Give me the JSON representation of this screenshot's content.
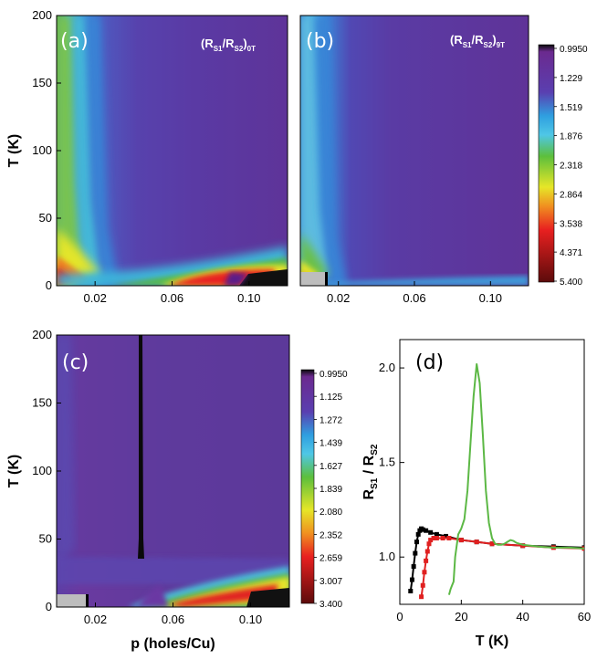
{
  "figure": {
    "panels": {
      "a": {
        "label": "(a)",
        "annotation": {
          "main1": "(R",
          "sub1": "S1",
          "main2": "/R",
          "sub2": "S2",
          "main3": ")",
          "sub3": "0T"
        }
      },
      "b": {
        "label": "(b)",
        "annotation": {
          "main1": "(R",
          "sub1": "S1",
          "main2": "/R",
          "sub2": "S2",
          "main3": ")",
          "sub3": "9T"
        }
      },
      "c": {
        "label": "(c)"
      },
      "d": {
        "label": "(d)"
      }
    }
  },
  "chart_data": [
    {
      "type": "heatmap",
      "panel": "a",
      "title": "(R_S1/R_S2)_0T",
      "xlabel": "",
      "ylabel": "T (K)",
      "xlim": [
        0.0,
        0.12
      ],
      "ylim": [
        0,
        200
      ],
      "xticks": [
        0.02,
        0.06,
        0.1
      ],
      "xticklabels": [
        "0.02",
        "0.06",
        "0.10"
      ],
      "yticks": [
        0,
        50,
        100,
        150,
        200
      ],
      "yticklabels": [
        "0",
        "50",
        "100",
        "150",
        "200"
      ]
    },
    {
      "type": "heatmap",
      "panel": "b",
      "title": "(R_S1/R_S2)_9T",
      "xlabel": "",
      "ylabel": "",
      "xlim": [
        0.0,
        0.12
      ],
      "ylim": [
        0,
        200
      ],
      "xticks": [
        0.02,
        0.06,
        0.1
      ],
      "xticklabels": [
        "0.02",
        "0.06",
        "0.10"
      ],
      "colorbar": [
        "0.9950",
        "1.229",
        "1.519",
        "1.876",
        "2.318",
        "2.864",
        "3.538",
        "4.371",
        "5.400"
      ]
    },
    {
      "type": "heatmap",
      "panel": "c",
      "xlabel": "p (holes/Cu)",
      "ylabel": "T (K)",
      "xlim": [
        0.0,
        0.12
      ],
      "ylim": [
        0,
        200
      ],
      "xticks": [
        0.02,
        0.06,
        0.1
      ],
      "xticklabels": [
        "0.02",
        "0.06",
        "0.10"
      ],
      "yticks": [
        0,
        50,
        100,
        150,
        200
      ],
      "yticklabels": [
        "0",
        "50",
        "100",
        "150",
        "200"
      ],
      "colorbar": [
        "0.9950",
        "1.125",
        "1.272",
        "1.439",
        "1.627",
        "1.839",
        "2.080",
        "2.352",
        "2.659",
        "3.007",
        "3.400"
      ]
    },
    {
      "type": "line",
      "panel": "d",
      "xlabel": "T (K)",
      "ylabel": "R_S1 / R_S2",
      "ylabel_parts": {
        "main1": "R",
        "sub1": "S1",
        "main2": " / R",
        "sub2": "S2"
      },
      "xlim": [
        0,
        60
      ],
      "ylim": [
        0.75,
        2.15
      ],
      "xticks": [
        0,
        20,
        40,
        60
      ],
      "xticklabels": [
        "0",
        "20",
        "40",
        "60"
      ],
      "yticks": [
        1.0,
        1.5,
        2.0
      ],
      "yticklabels": [
        "1.0",
        "1.5",
        "2.0"
      ],
      "series": [
        {
          "name": "black",
          "color": "#000000",
          "marker": "square",
          "x": [
            3.5,
            4.0,
            4.5,
            5.0,
            5.5,
            6.0,
            6.5,
            7.0,
            7.5,
            8.5,
            10,
            12,
            15,
            20,
            25,
            30,
            40,
            50,
            60
          ],
          "y": [
            0.82,
            0.88,
            0.95,
            1.02,
            1.08,
            1.12,
            1.14,
            1.15,
            1.145,
            1.14,
            1.13,
            1.12,
            1.11,
            1.09,
            1.08,
            1.07,
            1.06,
            1.055,
            1.05
          ]
        },
        {
          "name": "red",
          "color": "#e02020",
          "marker": "square",
          "x": [
            7.0,
            7.5,
            8.0,
            8.5,
            9.0,
            9.5,
            10,
            11,
            12,
            14,
            16,
            20,
            25,
            30,
            40,
            50,
            60
          ],
          "y": [
            0.79,
            0.85,
            0.92,
            0.98,
            1.03,
            1.07,
            1.09,
            1.1,
            1.1,
            1.1,
            1.1,
            1.09,
            1.08,
            1.07,
            1.06,
            1.05,
            1.045
          ]
        },
        {
          "name": "green",
          "color": "#5cb845",
          "marker": "none",
          "x": [
            16.0,
            16.5,
            17.0,
            17.5,
            18,
            19,
            20,
            21,
            22,
            23,
            24,
            25,
            26,
            27,
            28,
            29,
            30,
            31,
            32,
            33,
            34,
            35,
            36,
            37,
            38,
            40,
            45,
            50,
            55,
            60
          ],
          "y": [
            0.8,
            0.83,
            0.85,
            0.87,
            1.0,
            1.12,
            1.15,
            1.2,
            1.35,
            1.6,
            1.85,
            2.02,
            1.92,
            1.65,
            1.35,
            1.18,
            1.1,
            1.07,
            1.065,
            1.065,
            1.07,
            1.08,
            1.09,
            1.085,
            1.075,
            1.065,
            1.055,
            1.05,
            1.05,
            1.045
          ]
        }
      ]
    }
  ]
}
